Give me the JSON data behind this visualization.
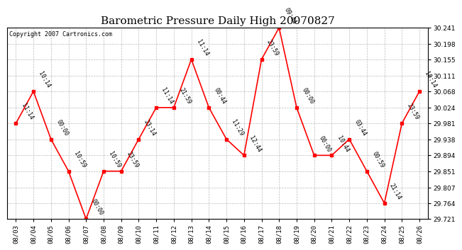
{
  "title": "Barometric Pressure Daily High 20070827",
  "copyright": "Copyright 2007 Cartronics.com",
  "x_labels": [
    "08/03",
    "08/04",
    "08/05",
    "08/06",
    "08/07",
    "08/08",
    "08/09",
    "08/10",
    "08/11",
    "08/12",
    "08/13",
    "08/14",
    "08/15",
    "08/16",
    "08/17",
    "08/18",
    "08/19",
    "08/20",
    "08/21",
    "08/22",
    "08/23",
    "08/24",
    "08/25",
    "08/26"
  ],
  "y_values": [
    29.981,
    30.068,
    29.938,
    29.851,
    29.721,
    29.851,
    29.851,
    29.938,
    30.024,
    30.024,
    30.155,
    30.024,
    29.938,
    29.894,
    30.155,
    30.241,
    30.024,
    29.894,
    29.894,
    29.938,
    29.851,
    29.764,
    29.981,
    30.068
  ],
  "point_labels": [
    "11:14",
    "10:14",
    "00:00",
    "10:59",
    "00:00",
    "10:59",
    "23:59",
    "23:14",
    "11:14",
    "21:59",
    "11:14",
    "00:44",
    "11:29",
    "12:44",
    "23:59",
    "09:44",
    "00:00",
    "00:00",
    "10:44",
    "03:44",
    "00:59",
    "21:14",
    "23:59",
    "10:14"
  ],
  "ylim_min": 29.721,
  "ylim_max": 30.241,
  "yticks": [
    29.721,
    29.764,
    29.807,
    29.851,
    29.894,
    29.938,
    29.981,
    30.024,
    30.068,
    30.111,
    30.155,
    30.198,
    30.241
  ],
  "line_color": "red",
  "marker_color": "red",
  "marker_size": 3,
  "bg_color": "white",
  "grid_color": "#bbbbbb",
  "title_fontsize": 11,
  "copyright_fontsize": 6,
  "tick_fontsize": 6.5,
  "point_label_fontsize": 6
}
